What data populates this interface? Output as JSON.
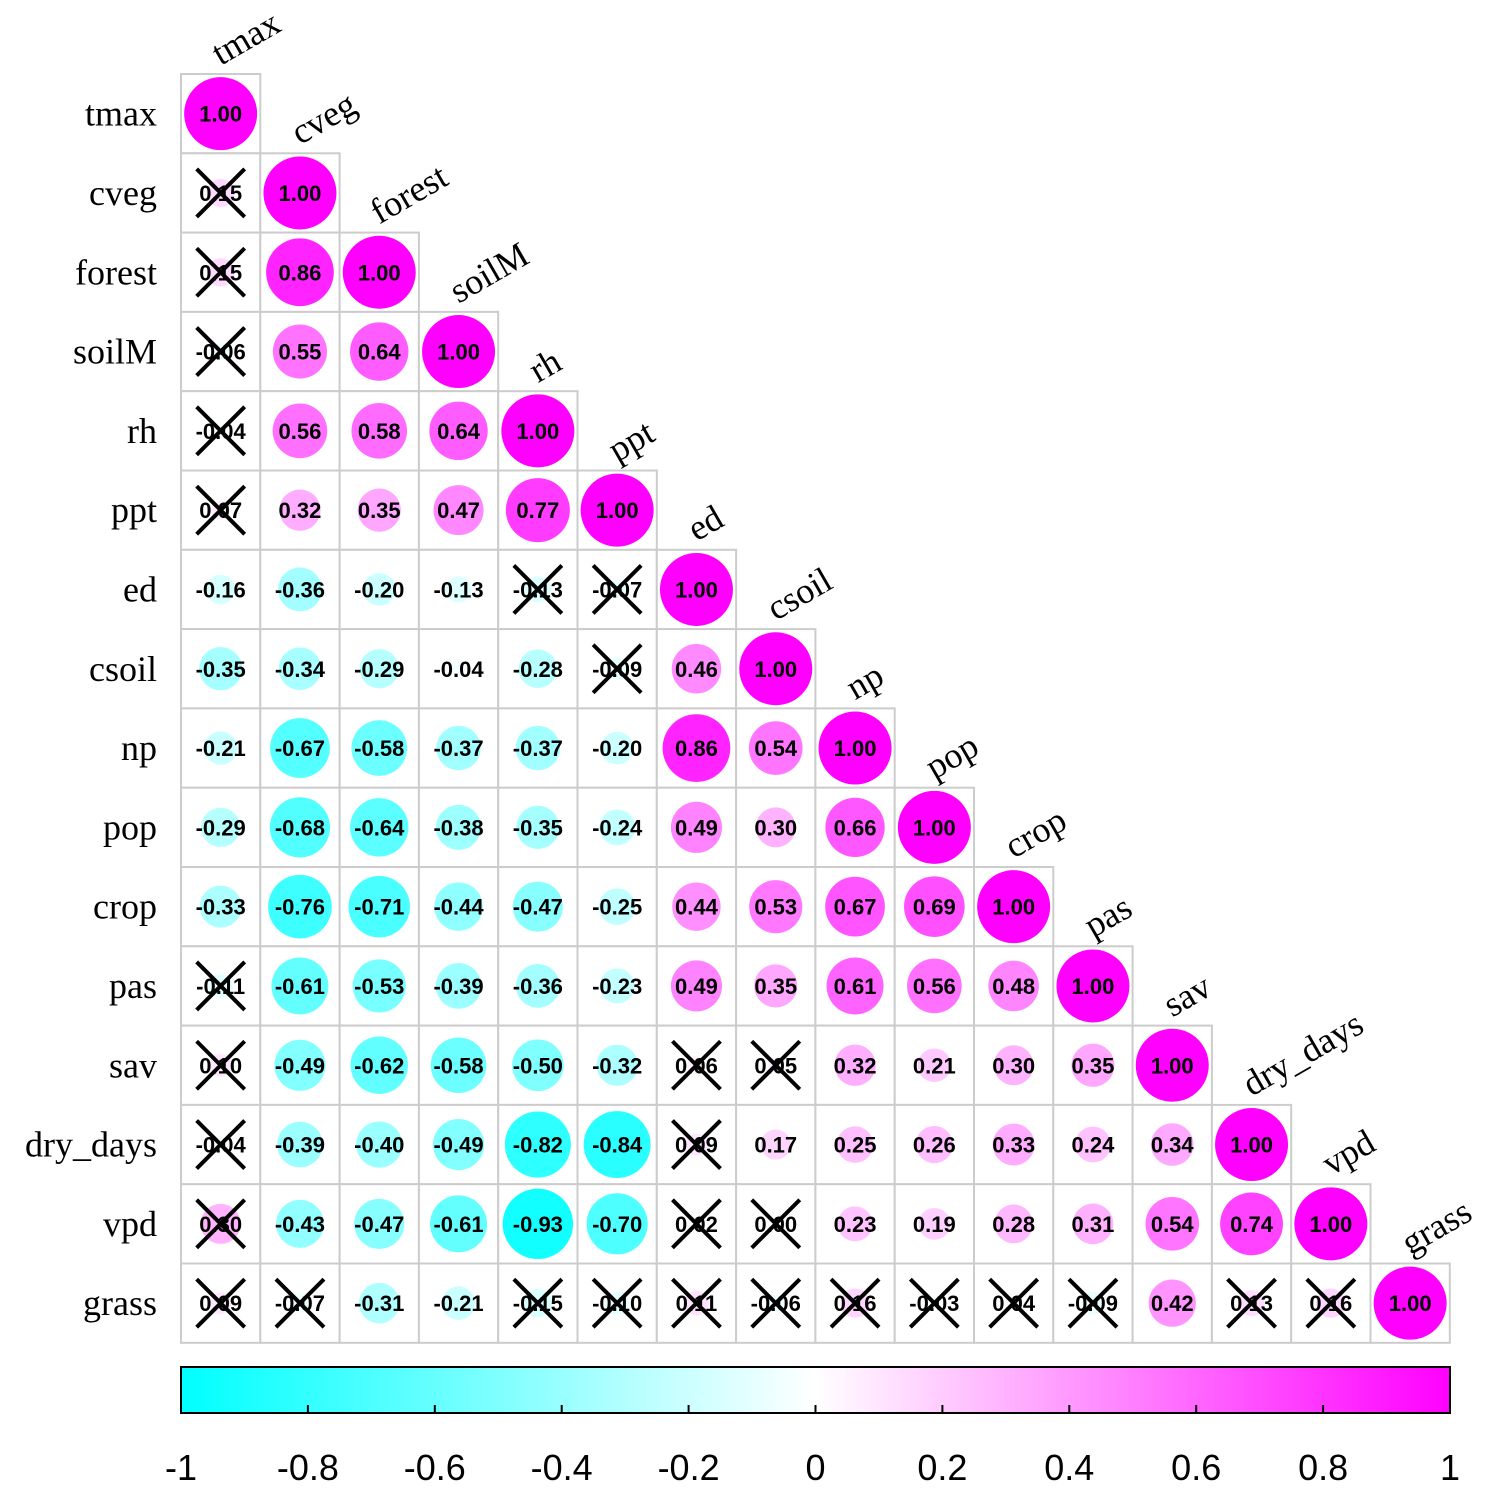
{
  "chart_data": {
    "type": "heatmap",
    "variables": [
      "tmax",
      "cveg",
      "forest",
      "soilM",
      "rh",
      "ppt",
      "ed",
      "csoil",
      "np",
      "pop",
      "crop",
      "pas",
      "sav",
      "dry_days",
      "vpd",
      "grass"
    ],
    "matrix": [
      [
        1.0
      ],
      [
        0.15,
        1.0
      ],
      [
        0.15,
        0.86,
        1.0
      ],
      [
        -0.06,
        0.55,
        0.64,
        1.0
      ],
      [
        -0.04,
        0.56,
        0.58,
        0.64,
        1.0
      ],
      [
        0.07,
        0.32,
        0.35,
        0.47,
        0.77,
        1.0
      ],
      [
        -0.16,
        -0.36,
        -0.2,
        -0.13,
        -0.13,
        -0.07,
        1.0
      ],
      [
        -0.35,
        -0.34,
        -0.29,
        -0.04,
        -0.28,
        -0.09,
        0.46,
        1.0
      ],
      [
        -0.21,
        -0.67,
        -0.58,
        -0.37,
        -0.37,
        -0.2,
        0.86,
        0.54,
        1.0
      ],
      [
        -0.29,
        -0.68,
        -0.64,
        -0.38,
        -0.35,
        -0.24,
        0.49,
        0.3,
        0.66,
        1.0
      ],
      [
        -0.33,
        -0.76,
        -0.71,
        -0.44,
        -0.47,
        -0.25,
        0.44,
        0.53,
        0.67,
        0.69,
        1.0
      ],
      [
        -0.11,
        -0.61,
        -0.53,
        -0.39,
        -0.36,
        -0.23,
        0.49,
        0.35,
        0.61,
        0.56,
        0.48,
        1.0
      ],
      [
        0.1,
        -0.49,
        -0.62,
        -0.58,
        -0.5,
        -0.32,
        0.06,
        0.05,
        0.32,
        0.21,
        0.3,
        0.35,
        1.0
      ],
      [
        -0.04,
        -0.39,
        -0.4,
        -0.49,
        -0.82,
        -0.84,
        0.09,
        0.17,
        0.25,
        0.26,
        0.33,
        0.24,
        0.34,
        1.0
      ],
      [
        0.3,
        -0.43,
        -0.47,
        -0.61,
        -0.93,
        -0.7,
        0.02,
        0.0,
        0.23,
        0.19,
        0.28,
        0.31,
        0.54,
        0.74,
        1.0
      ],
      [
        0.09,
        -0.07,
        -0.31,
        -0.21,
        -0.15,
        -0.1,
        0.11,
        -0.06,
        0.16,
        -0.03,
        0.04,
        -0.09,
        0.42,
        0.13,
        0.16,
        1.0
      ]
    ],
    "insignificant": [
      [
        1,
        0
      ],
      [
        2,
        0
      ],
      [
        3,
        0
      ],
      [
        4,
        0
      ],
      [
        5,
        0
      ],
      [
        6,
        4
      ],
      [
        6,
        5
      ],
      [
        7,
        5
      ],
      [
        11,
        0
      ],
      [
        12,
        0
      ],
      [
        12,
        6
      ],
      [
        12,
        7
      ],
      [
        13,
        0
      ],
      [
        13,
        6
      ],
      [
        14,
        0
      ],
      [
        14,
        6
      ],
      [
        14,
        7
      ],
      [
        15,
        0
      ],
      [
        15,
        1
      ],
      [
        15,
        4
      ],
      [
        15,
        5
      ],
      [
        15,
        6
      ],
      [
        15,
        7
      ],
      [
        15,
        8
      ],
      [
        15,
        9
      ],
      [
        15,
        10
      ],
      [
        15,
        11
      ],
      [
        15,
        13
      ],
      [
        15,
        14
      ]
    ],
    "colorbar": {
      "ticks": [
        "-1",
        "-0.8",
        "-0.6",
        "-0.4",
        "-0.2",
        "0",
        "0.2",
        "0.4",
        "0.6",
        "0.8",
        "1"
      ],
      "range": [
        -1,
        1
      ],
      "colors": {
        "negative": "#00FFFF",
        "zero": "#FFFFFF",
        "positive": "#FF00FF"
      }
    }
  }
}
